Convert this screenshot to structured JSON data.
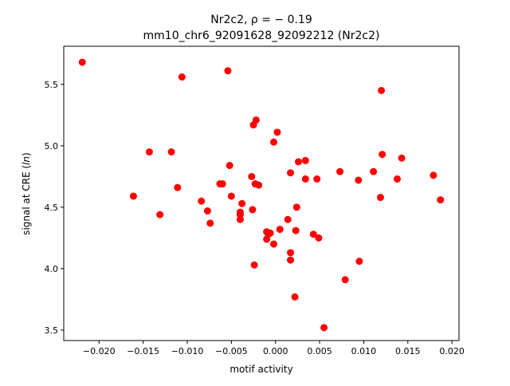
{
  "chart_data": {
    "type": "scatter",
    "title_line1": "Nr2c2, ρ = − 0.19",
    "title_line2": "mm10_chr6_92091628_92092212 (Nr2c2)",
    "xlabel": "motif activity",
    "ylabel_main": "signal at CRE (",
    "ylabel_italic": "ln",
    "ylabel_end": ")",
    "xlim": [
      -0.024,
      0.0208
    ],
    "ylim": [
      3.415,
      5.81
    ],
    "xticks": [
      {
        "value": -0.02,
        "label": "−0.020"
      },
      {
        "value": -0.015,
        "label": "−0.015"
      },
      {
        "value": -0.01,
        "label": "−0.010"
      },
      {
        "value": -0.005,
        "label": "−0.005"
      },
      {
        "value": 0.0,
        "label": "0.000"
      },
      {
        "value": 0.005,
        "label": "0.005"
      },
      {
        "value": 0.01,
        "label": "0.010"
      },
      {
        "value": 0.015,
        "label": "0.015"
      },
      {
        "value": 0.02,
        "label": "0.020"
      }
    ],
    "yticks": [
      {
        "value": 3.5,
        "label": "3.5"
      },
      {
        "value": 4.0,
        "label": "4.0"
      },
      {
        "value": 4.5,
        "label": "4.5"
      },
      {
        "value": 5.0,
        "label": "5.0"
      },
      {
        "value": 5.5,
        "label": "5.5"
      }
    ],
    "marker_color": "#ff0000",
    "points": [
      [
        -0.0219,
        5.68
      ],
      [
        -0.0106,
        5.56
      ],
      [
        -0.0054,
        5.61
      ],
      [
        0.012,
        5.45
      ],
      [
        -0.0022,
        5.21
      ],
      [
        -0.0025,
        5.17
      ],
      [
        0.0002,
        5.11
      ],
      [
        -0.0002,
        5.03
      ],
      [
        -0.0143,
        4.95
      ],
      [
        -0.0118,
        4.95
      ],
      [
        0.0121,
        4.93
      ],
      [
        0.0143,
        4.9
      ],
      [
        0.0034,
        4.88
      ],
      [
        0.0026,
        4.87
      ],
      [
        -0.0052,
        4.84
      ],
      [
        0.0073,
        4.79
      ],
      [
        0.0111,
        4.79
      ],
      [
        0.0017,
        4.78
      ],
      [
        0.0179,
        4.76
      ],
      [
        -0.0027,
        4.75
      ],
      [
        0.0034,
        4.73
      ],
      [
        0.0047,
        4.73
      ],
      [
        0.0138,
        4.73
      ],
      [
        0.0094,
        4.72
      ],
      [
        -0.0023,
        4.69
      ],
      [
        -0.0019,
        4.68
      ],
      [
        -0.006,
        4.69
      ],
      [
        -0.0063,
        4.69
      ],
      [
        -0.0111,
        4.66
      ],
      [
        -0.0161,
        4.59
      ],
      [
        -0.005,
        4.59
      ],
      [
        0.0119,
        4.58
      ],
      [
        0.0187,
        4.56
      ],
      [
        -0.0084,
        4.55
      ],
      [
        -0.0038,
        4.53
      ],
      [
        0.0024,
        4.5
      ],
      [
        -0.0026,
        4.48
      ],
      [
        -0.0077,
        4.47
      ],
      [
        -0.004,
        4.46
      ],
      [
        -0.004,
        4.44
      ],
      [
        -0.0131,
        4.44
      ],
      [
        0.0014,
        4.4
      ],
      [
        -0.004,
        4.4
      ],
      [
        -0.0074,
        4.37
      ],
      [
        0.0005,
        4.32
      ],
      [
        0.0023,
        4.31
      ],
      [
        -0.001,
        4.3
      ],
      [
        -0.0006,
        4.29
      ],
      [
        -0.0008,
        4.28
      ],
      [
        0.0043,
        4.28
      ],
      [
        0.0049,
        4.25
      ],
      [
        -0.001,
        4.24
      ],
      [
        -0.0002,
        4.2
      ],
      [
        0.0017,
        4.13
      ],
      [
        0.0017,
        4.07
      ],
      [
        0.0095,
        4.06
      ],
      [
        -0.0024,
        4.03
      ],
      [
        0.0079,
        3.91
      ],
      [
        0.0022,
        3.77
      ],
      [
        0.0055,
        3.52
      ]
    ]
  }
}
